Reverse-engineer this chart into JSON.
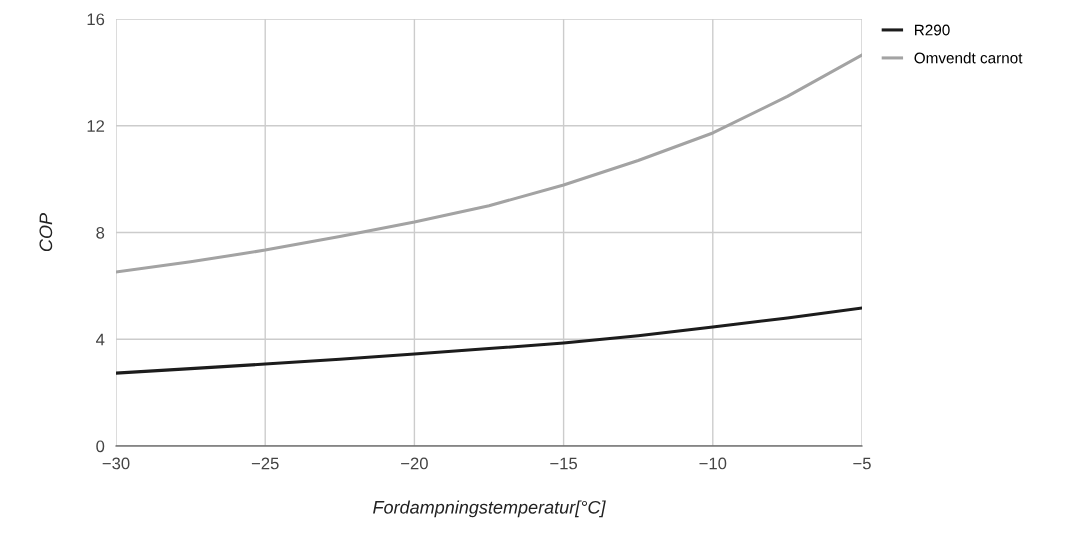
{
  "chart_data": {
    "type": "line",
    "xlabel": "Fordampningstemperatur[°C]",
    "ylabel": "COP",
    "x": [
      -30,
      -27.5,
      -25,
      -22.5,
      -20,
      -17.5,
      -15,
      -12.5,
      -10,
      -7.5,
      -5
    ],
    "series": [
      {
        "name": "R290",
        "color": "#1c1c1c",
        "values": [
          2.73,
          2.9,
          3.07,
          3.25,
          3.45,
          3.65,
          3.86,
          4.13,
          4.46,
          4.8,
          5.17
        ]
      },
      {
        "name": "Omvendt carnot",
        "color": "#a3a3a3",
        "values": [
          6.52,
          6.9,
          7.34,
          7.85,
          8.39,
          9.0,
          9.78,
          10.7,
          11.73,
          13.1,
          14.65
        ]
      }
    ],
    "xlim": [
      -30,
      -5
    ],
    "xticks": [
      -30,
      -25,
      -20,
      -15,
      -10,
      -5
    ],
    "ylim": [
      0,
      16
    ],
    "yticks": [
      0,
      4,
      8,
      12,
      16
    ],
    "grid": true,
    "legend": "top right",
    "marker": "none",
    "line_style": "solid"
  }
}
